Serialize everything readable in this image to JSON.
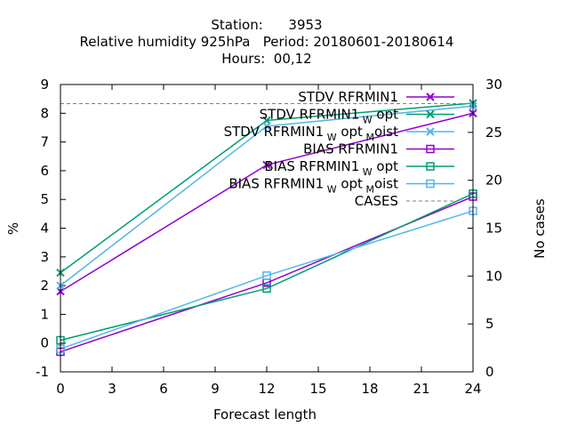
{
  "title": {
    "line1": "Station:      3953",
    "line2": "Relative humidity 925hPa   Period: 20180601-20180614",
    "line3": "Hours:  00,12"
  },
  "chart_data": {
    "type": "line",
    "xlabel": "Forecast length",
    "ylabel": "%",
    "y2label": "No cases",
    "xlim": [
      0,
      24
    ],
    "ylim": [
      -1,
      9
    ],
    "y2lim": [
      0,
      30
    ],
    "x_ticks": [
      "0",
      "3",
      "6",
      "9",
      "12",
      "15",
      "18",
      "21",
      "24"
    ],
    "y_ticks": [
      "-1",
      "0",
      "1",
      "2",
      "3",
      "4",
      "5",
      "6",
      "7",
      "8",
      "9"
    ],
    "y2_ticks": [
      "0",
      "5",
      "10",
      "15",
      "20",
      "25",
      "30"
    ],
    "grid": false,
    "legend_position": "top-right",
    "x": [
      0,
      12,
      24
    ],
    "series": [
      {
        "name": "STDV RFRMIN1",
        "values": [
          1.8,
          6.2,
          8.0
        ],
        "color": "#9400d3",
        "marker": "x",
        "axis": "left"
      },
      {
        "name": "STDV RFRMIN1_W opt",
        "label_main": "STDV RFRMIN1",
        "label_sub": "W",
        "label_tail": "opt",
        "values": [
          2.45,
          7.75,
          8.35
        ],
        "color": "#009e73",
        "marker": "x",
        "axis": "left"
      },
      {
        "name": "STDV RFRMIN1_W opt_M oist",
        "label_main": "STDV RFRMIN1",
        "label_sub": "W",
        "label_tail": "opt",
        "label_sub2": "M",
        "label_tail2": "oist",
        "values": [
          2.0,
          7.55,
          8.25
        ],
        "color": "#56b4e9",
        "marker": "x",
        "axis": "left"
      },
      {
        "name": "BIAS RFRMIN1",
        "values": [
          -0.3,
          2.1,
          5.1
        ],
        "color": "#9400d3",
        "marker": "square",
        "axis": "left"
      },
      {
        "name": "BIAS RFRMIN1_W opt",
        "label_main": "BIAS RFRMIN1",
        "label_sub": "W",
        "label_tail": "opt",
        "values": [
          0.1,
          1.9,
          5.2
        ],
        "color": "#009e73",
        "marker": "square",
        "axis": "left"
      },
      {
        "name": "BIAS RFRMIN1_W opt_M oist",
        "label_main": "BIAS RFRMIN1",
        "label_sub": "W",
        "label_tail": "opt",
        "label_sub2": "M",
        "label_tail2": "oist",
        "values": [
          -0.2,
          2.35,
          4.6
        ],
        "color": "#56b4e9",
        "marker": "square",
        "axis": "left"
      },
      {
        "name": "CASES",
        "values": [
          28,
          28,
          28
        ],
        "color": "#808080",
        "marker": "none",
        "dash": true,
        "axis": "right"
      }
    ]
  }
}
